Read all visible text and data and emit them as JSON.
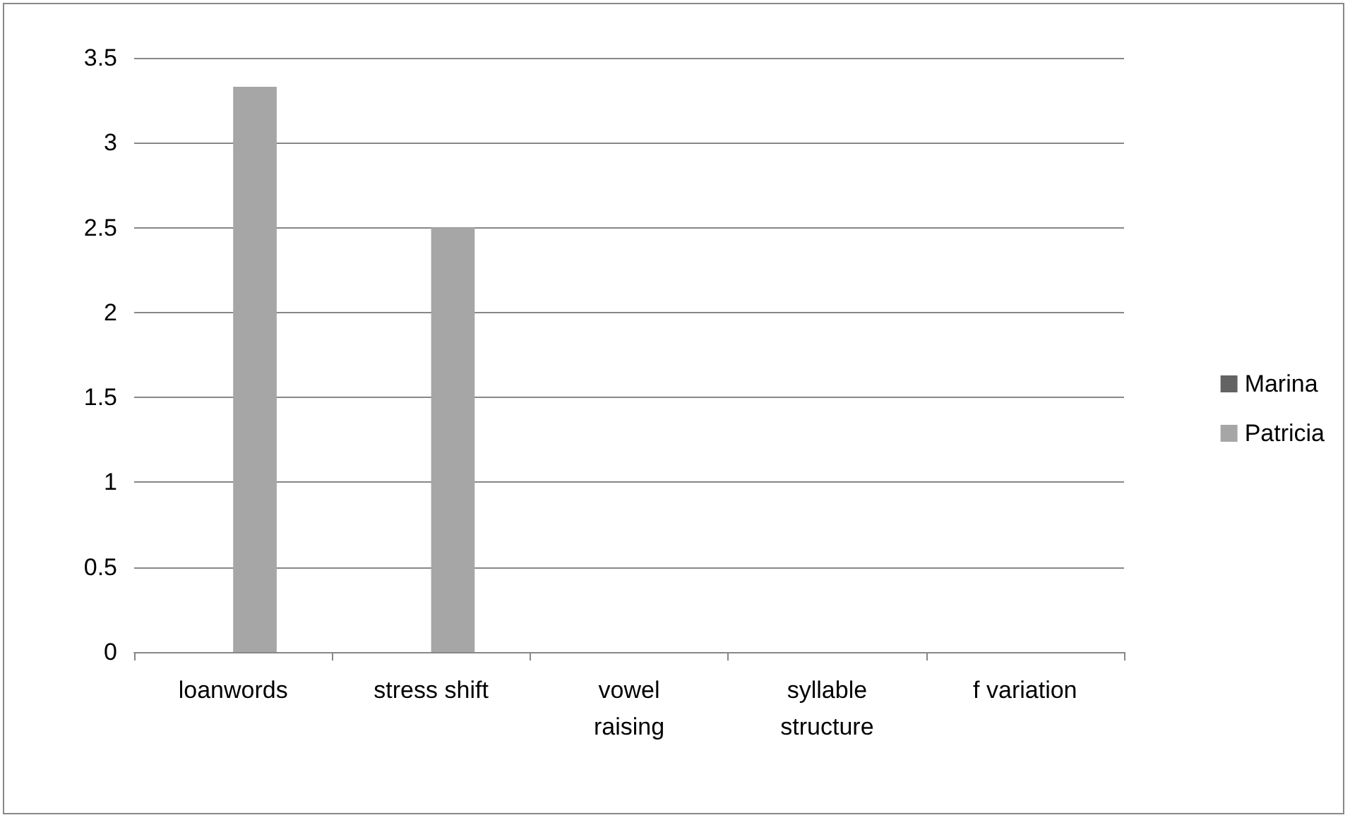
{
  "chart_data": {
    "type": "bar",
    "categories": [
      "loanwords",
      "stress shift",
      "vowel\nraising",
      "syllable\nstructure",
      "f variation"
    ],
    "series": [
      {
        "name": "Marina",
        "color": "#636363",
        "values": [
          0,
          0,
          0,
          0,
          0
        ]
      },
      {
        "name": "Patricia",
        "color": "#a6a6a6",
        "values": [
          3.33,
          2.5,
          0,
          0,
          0
        ]
      }
    ],
    "ylim": [
      0,
      3.5
    ],
    "yticks": [
      0,
      0.5,
      1,
      1.5,
      2,
      2.5,
      3,
      3.5
    ],
    "grid": "y",
    "legend": "right"
  }
}
